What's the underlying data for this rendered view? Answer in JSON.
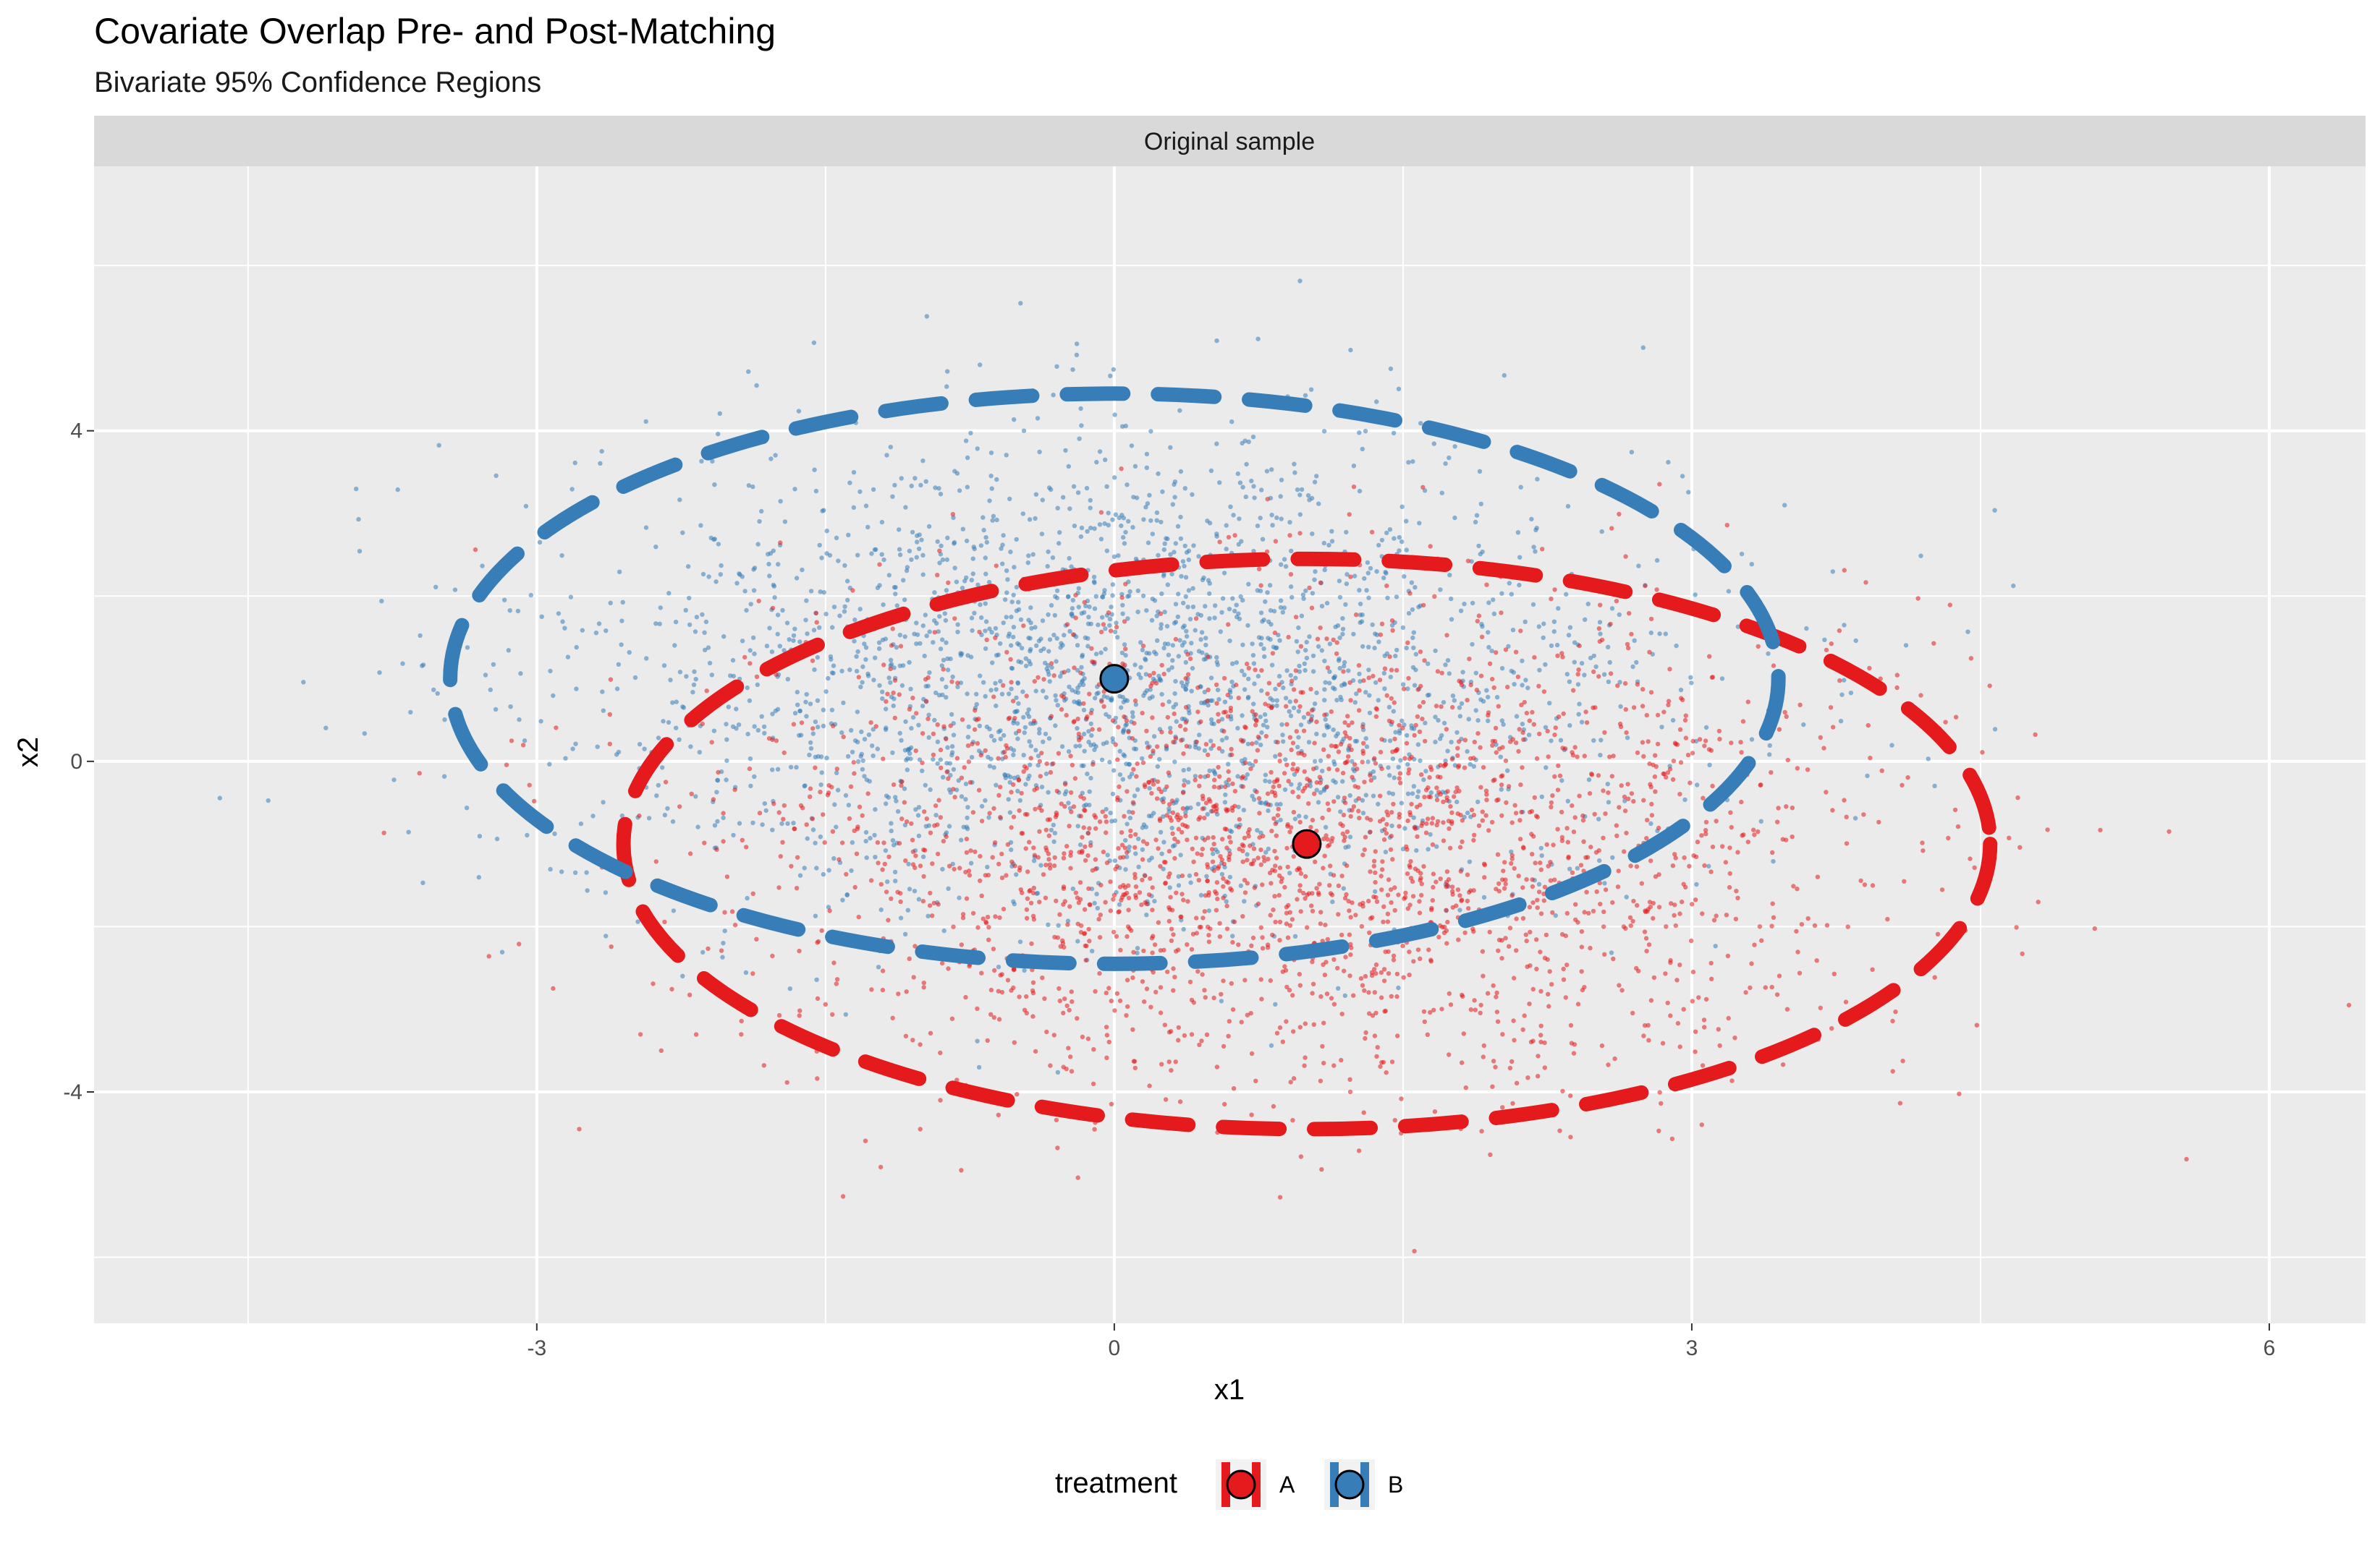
{
  "chart_data": {
    "type": "scatter",
    "title": "Covariate Overlap Pre- and Post-Matching",
    "subtitle": "Bivariate 95% Confidence Regions",
    "facet": "Original sample",
    "xlabel": "x1",
    "ylabel": "x2",
    "xlim": [
      -5.3,
      6.5
    ],
    "ylim": [
      -6.8,
      7.2
    ],
    "x_ticks": [
      -3,
      0,
      3,
      6
    ],
    "y_ticks": [
      -4,
      0,
      4
    ],
    "grid": true,
    "legend": {
      "title": "treatment",
      "position": "bottom",
      "items": [
        {
          "label": "A",
          "color": "#E41A1C"
        },
        {
          "label": "B",
          "color": "#377EB8"
        }
      ]
    },
    "series": [
      {
        "name": "A",
        "color": "#E41A1C",
        "mean": [
          1.0,
          -1.0
        ],
        "sd": [
          1.45,
          1.45
        ],
        "n": 2500,
        "ellipse": {
          "center": [
            1.0,
            -1.0
          ],
          "radius_x": 3.55,
          "radius_y": 3.45
        }
      },
      {
        "name": "B",
        "color": "#377EB8",
        "mean": [
          0.0,
          1.0
        ],
        "sd": [
          1.45,
          1.45
        ],
        "n": 2500,
        "ellipse": {
          "center": [
            0.0,
            1.0
          ],
          "radius_x": 3.45,
          "radius_y": 3.45
        }
      }
    ]
  }
}
